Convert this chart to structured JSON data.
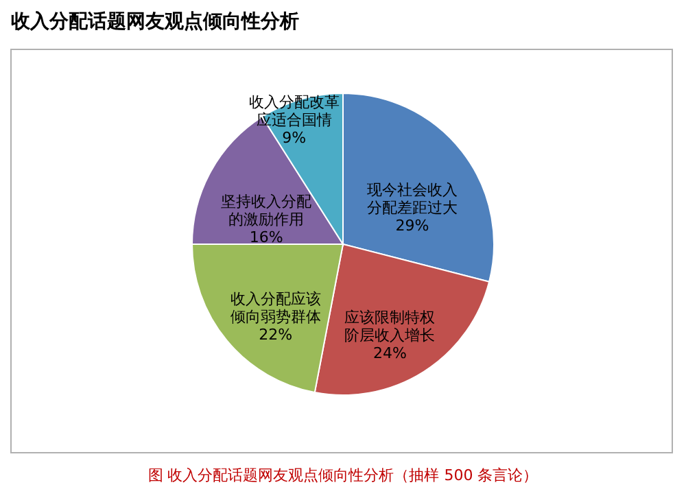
{
  "chart_data": {
    "type": "pie",
    "title": "收入分配话题网友观点倾向性分析",
    "categories": [
      "现今社会收入分配差距过大",
      "应该限制特权阶层收入增长",
      "收入分配应该倾向弱势群体",
      "坚持收入分配的激励作用",
      "收入分配改革应适合国情"
    ],
    "values": [
      29,
      24,
      22,
      16,
      9
    ],
    "colors": [
      "#4f81bd",
      "#c0504d",
      "#9bbb59",
      "#8064a2",
      "#4bacc6"
    ],
    "value_labels": [
      "29%",
      "24%",
      "22%",
      "16%",
      "9%"
    ],
    "annotations": [
      "图  收入分配话题网友观点倾向性分析（抽样 500 条言论）"
    ]
  }
}
